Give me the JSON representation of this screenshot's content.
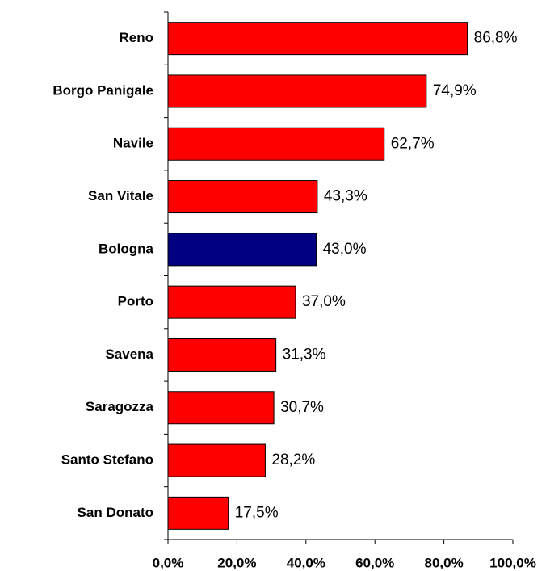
{
  "chart_data": {
    "type": "bar",
    "orientation": "horizontal",
    "categories": [
      "Reno",
      "Borgo Panigale",
      "Navile",
      "San Vitale",
      "Bologna",
      "Porto",
      "Savena",
      "Saragozza",
      "Santo Stefano",
      "San Donato"
    ],
    "values": [
      86.8,
      74.9,
      62.7,
      43.3,
      43.0,
      37.0,
      31.3,
      30.7,
      28.2,
      17.5
    ],
    "value_labels": [
      "86,8%",
      "74,9%",
      "62,7%",
      "43,3%",
      "43,0%",
      "37,0%",
      "31,3%",
      "30,7%",
      "28,2%",
      "17,5%"
    ],
    "colors": [
      "#ff0000",
      "#ff0000",
      "#ff0000",
      "#ff0000",
      "#000080",
      "#ff0000",
      "#ff0000",
      "#ff0000",
      "#ff0000",
      "#ff0000"
    ],
    "xlim": [
      0,
      100
    ],
    "xticks": [
      {
        "value": 0,
        "label": "0,0%"
      },
      {
        "value": 20,
        "label": "20,0%"
      },
      {
        "value": 40,
        "label": "40,0%"
      },
      {
        "value": 60,
        "label": "60,0%"
      },
      {
        "value": 80,
        "label": "80,0%"
      },
      {
        "value": 100,
        "label": "100,0%"
      }
    ],
    "grid": false
  }
}
